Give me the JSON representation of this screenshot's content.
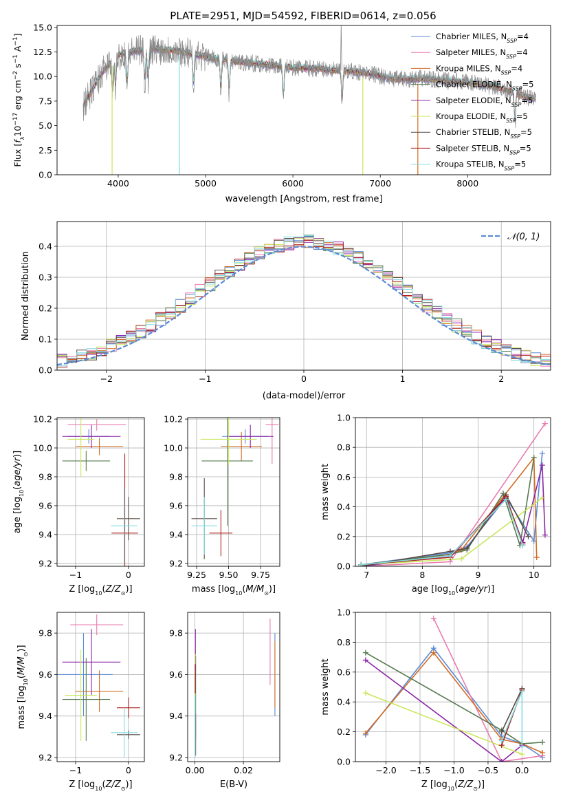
{
  "figure": {
    "title": "PLATE=2951, MJD=54592, FIBERID=0614, z=0.056"
  },
  "colors": {
    "Chabrier MILES": "#5b8ad6",
    "Salpeter MILES": "#e87cae",
    "Kroupa MILES": "#d26c22",
    "Chabrier ELODIE": "#557a4e",
    "Salpeter ELODIE": "#8b25a6",
    "Kroupa ELODIE": "#c9e75a",
    "Chabrier STELIB": "#5a4a46",
    "Salpeter STELIB": "#ad1f1f",
    "Kroupa STELIB": "#80dce0",
    "data": "#8a8a8a",
    "normal": "#5b8ad6"
  },
  "chart_data": [
    {
      "id": "spectrum",
      "type": "line",
      "xlabel": "wavelength [Angstrom, rest frame]",
      "ylabel": "Flux [fλ10⁻¹⁷ erg cm⁻² s⁻¹ A⁻¹]",
      "xlim": [
        3300,
        8950
      ],
      "ylim": [
        0,
        15.2
      ],
      "xticks": [
        4000,
        5000,
        6000,
        7000,
        8000
      ],
      "yticks": [
        0.0,
        2.5,
        5.0,
        7.5,
        10.0,
        12.5,
        15.0
      ],
      "grid": false,
      "legend_position": "upper right",
      "legend": [
        {
          "name": "Chabrier MILES",
          "sub": "SSP",
          "n": "=4"
        },
        {
          "name": "Salpeter MILES",
          "sub": "SSP",
          "n": "=4"
        },
        {
          "name": "Kroupa MILES",
          "sub": "SSP",
          "n": "=4"
        },
        {
          "name": "Chabrier ELODIE",
          "sub": "SSP",
          "n": "=5"
        },
        {
          "name": "Salpeter ELODIE",
          "sub": "SSP",
          "n": "=5"
        },
        {
          "name": "Kroupa ELODIE",
          "sub": "SSP",
          "n": "=5"
        },
        {
          "name": "Chabrier STELIB",
          "sub": "SSP",
          "n": "=5"
        },
        {
          "name": "Salpeter STELIB",
          "sub": "SSP",
          "n": "=5"
        },
        {
          "name": "Kroupa STELIB",
          "sub": "SSP",
          "n": "=5"
        }
      ],
      "continuum": [
        [
          3600,
          7.0
        ],
        [
          3700,
          8.6
        ],
        [
          3800,
          10.2
        ],
        [
          3900,
          11.3
        ],
        [
          4000,
          12.2
        ],
        [
          4200,
          12.6
        ],
        [
          4400,
          12.8
        ],
        [
          4600,
          12.7
        ],
        [
          4800,
          12.4
        ],
        [
          5000,
          12.0
        ],
        [
          5300,
          11.6
        ],
        [
          5600,
          11.3
        ],
        [
          6000,
          10.9
        ],
        [
          6300,
          10.8
        ],
        [
          6500,
          10.6
        ],
        [
          6700,
          10.5
        ],
        [
          6900,
          10.3
        ],
        [
          7100,
          9.8
        ],
        [
          7300,
          9.7
        ],
        [
          7500,
          9.8
        ],
        [
          7700,
          9.6
        ],
        [
          8000,
          9.4
        ],
        [
          8300,
          9.0
        ],
        [
          8500,
          8.5
        ],
        [
          8700,
          7.8
        ]
      ],
      "drop_lines": [
        {
          "x": 3930,
          "series": "Kroupa ELODIE"
        },
        {
          "x": 4700,
          "series": "Kroupa STELIB"
        },
        {
          "x": 6800,
          "series": "Kroupa ELODIE"
        },
        {
          "x": 7430,
          "series": "Kroupa MILES"
        }
      ]
    },
    {
      "id": "residuals",
      "type": "histogram",
      "xlabel": "(data-model)/error",
      "ylabel": "Normed distribution",
      "xlim": [
        -2.5,
        2.5
      ],
      "ylim": [
        0,
        0.48
      ],
      "xticks": [
        -2,
        -1,
        0,
        1,
        2
      ],
      "yticks": [
        0.0,
        0.1,
        0.2,
        0.3,
        0.4
      ],
      "grid": true,
      "legend_position": "upper right",
      "legend_label": "𝒩(0, 1)",
      "bin_width": 0.1
    },
    {
      "id": "age-vs-Z",
      "type": "errorbar",
      "xlabel": "Z [log₁₀(Z/Z⊙)]",
      "ylabel": "age  [log₁₀(age/yr)]",
      "xlim": [
        -1.35,
        0.3
      ],
      "ylim": [
        9.18,
        10.21
      ],
      "xticks": [
        -1,
        0
      ],
      "yticks": [
        9.2,
        9.4,
        9.6,
        9.8,
        10.0,
        10.2
      ],
      "grid": true,
      "points": [
        {
          "series": "Chabrier MILES",
          "x": -0.75,
          "xerr": 0.4,
          "y": 10.08,
          "yerr": 0.05
        },
        {
          "series": "Salpeter MILES",
          "x": -0.6,
          "xerr": 0.55,
          "y": 10.16,
          "yerr": 0.04
        },
        {
          "series": "Kroupa MILES",
          "x": -0.55,
          "xerr": 0.45,
          "y": 10.01,
          "yerr": 0.06
        },
        {
          "series": "Chabrier ELODIE",
          "x": -0.8,
          "xerr": 0.45,
          "y": 9.91,
          "yerr": 0.07
        },
        {
          "series": "Salpeter ELODIE",
          "x": -0.7,
          "xerr": 0.55,
          "y": 10.08,
          "yerr": 0.08
        },
        {
          "series": "Kroupa ELODIE",
          "x": -0.9,
          "xerr": 0.25,
          "y": 10.06,
          "yerr": 0.26
        },
        {
          "series": "Chabrier STELIB",
          "x": 0.0,
          "xerr": 0.22,
          "y": 9.51,
          "yerr": 0.15
        },
        {
          "series": "Salpeter STELIB",
          "x": -0.07,
          "xerr": 0.25,
          "y": 9.41,
          "yerr": 0.55
        },
        {
          "series": "Kroupa STELIB",
          "x": -0.08,
          "xerr": 0.25,
          "y": 9.46,
          "yerr": 0.26
        }
      ]
    },
    {
      "id": "age-vs-mass",
      "type": "errorbar",
      "xlabel": "mass [log₁₀(M/M⊙)]",
      "ylabel": "",
      "xlim": [
        9.18,
        9.9
      ],
      "ylim": [
        9.18,
        10.21
      ],
      "xticks": [
        9.25,
        9.5,
        9.75
      ],
      "yticks": [
        9.2,
        9.4,
        9.6,
        9.8,
        10.0,
        10.2
      ],
      "grid": true,
      "points": [
        {
          "series": "Chabrier MILES",
          "x": 9.63,
          "xerr": 0.18,
          "y": 10.08,
          "yerr": 0.05
        },
        {
          "series": "Salpeter MILES",
          "x": 9.84,
          "xerr": 0.05,
          "y": 10.16,
          "yerr": 0.27
        },
        {
          "series": "Kroupa MILES",
          "x": 9.6,
          "xerr": 0.16,
          "y": 10.01,
          "yerr": 0.1
        },
        {
          "series": "Chabrier ELODIE",
          "x": 9.49,
          "xerr": 0.2,
          "y": 9.91,
          "yerr": 0.45
        },
        {
          "series": "Salpeter ELODIE",
          "x": 9.67,
          "xerr": 0.18,
          "y": 10.08,
          "yerr": 0.08
        },
        {
          "series": "Kroupa ELODIE",
          "x": 9.5,
          "xerr": 0.22,
          "y": 10.06,
          "yerr": 0.18
        },
        {
          "series": "Chabrier STELIB",
          "x": 9.31,
          "xerr": 0.1,
          "y": 9.51,
          "yerr": 0.28
        },
        {
          "series": "Salpeter STELIB",
          "x": 9.44,
          "xerr": 0.09,
          "y": 9.41,
          "yerr": 0.16
        },
        {
          "series": "Kroupa STELIB",
          "x": 9.31,
          "xerr": 0.1,
          "y": 9.46,
          "yerr": 0.2
        }
      ]
    },
    {
      "id": "mass-weight-vs-age",
      "type": "line",
      "xlabel": "age  [log₁₀(age/yr)]",
      "ylabel": "mass weight",
      "xlim": [
        6.8,
        10.3
      ],
      "ylim": [
        0,
        1.0
      ],
      "xticks": [
        7,
        8,
        9,
        10
      ],
      "yticks": [
        0.0,
        0.2,
        0.4,
        0.6,
        0.8,
        1.0
      ],
      "grid": true,
      "series": [
        {
          "name": "Chabrier MILES",
          "points": [
            [
              6.9,
              0.01
            ],
            [
              8.5,
              0.09
            ],
            [
              8.8,
              0.13
            ],
            [
              9.5,
              0.46
            ],
            [
              10.0,
              0.17
            ],
            [
              10.15,
              0.76
            ]
          ]
        },
        {
          "name": "Salpeter MILES",
          "points": [
            [
              6.9,
              0.0
            ],
            [
              8.5,
              0.03
            ],
            [
              10.2,
              0.96
            ]
          ]
        },
        {
          "name": "Kroupa MILES",
          "points": [
            [
              6.9,
              0.01
            ],
            [
              8.5,
              0.08
            ],
            [
              8.7,
              0.11
            ],
            [
              10.0,
              0.73
            ],
            [
              10.05,
              0.06
            ]
          ]
        },
        {
          "name": "Chabrier ELODIE",
          "points": [
            [
              6.9,
              0.01
            ],
            [
              8.5,
              0.08
            ],
            [
              8.8,
              0.11
            ],
            [
              9.45,
              0.49
            ],
            [
              9.75,
              0.14
            ],
            [
              10.0,
              0.73
            ]
          ]
        },
        {
          "name": "Salpeter ELODIE",
          "points": [
            [
              6.9,
              0.0
            ],
            [
              8.5,
              0.07
            ],
            [
              9.5,
              0.46
            ],
            [
              9.8,
              0.16
            ],
            [
              10.15,
              0.68
            ],
            [
              10.2,
              0.21
            ]
          ]
        },
        {
          "name": "Kroupa ELODIE",
          "points": [
            [
              6.9,
              0.01
            ],
            [
              8.7,
              0.05
            ],
            [
              10.15,
              0.46
            ]
          ]
        },
        {
          "name": "Chabrier STELIB",
          "points": [
            [
              6.9,
              0.0
            ],
            [
              8.5,
              0.1
            ],
            [
              8.8,
              0.12
            ],
            [
              9.5,
              0.48
            ],
            [
              9.9,
              0.2
            ]
          ]
        },
        {
          "name": "Salpeter STELIB",
          "points": [
            [
              6.9,
              0.01
            ],
            [
              8.5,
              0.06
            ],
            [
              9.5,
              0.47
            ],
            [
              9.8,
              0.15
            ]
          ]
        },
        {
          "name": "Kroupa STELIB",
          "points": [
            [
              6.9,
              0.01
            ],
            [
              8.5,
              0.07
            ],
            [
              9.5,
              0.45
            ],
            [
              9.8,
              0.14
            ]
          ]
        }
      ]
    },
    {
      "id": "mass-vs-Z",
      "type": "errorbar",
      "xlabel": "Z [log₁₀(Z/Z⊙)]",
      "ylabel": "mass [log₁₀(M/M⊙)]",
      "xlim": [
        -1.35,
        0.3
      ],
      "ylim": [
        9.18,
        9.9
      ],
      "xticks": [
        -1,
        0
      ],
      "yticks": [
        9.2,
        9.4,
        9.6,
        9.8
      ],
      "grid": true,
      "points": [
        {
          "series": "Chabrier MILES",
          "x": -0.85,
          "xerr": 0.55,
          "y": 9.6,
          "yerr": 0.2
        },
        {
          "series": "Salpeter MILES",
          "x": -0.6,
          "xerr": 0.5,
          "y": 9.84,
          "yerr": 0.05
        },
        {
          "series": "Kroupa MILES",
          "x": -0.55,
          "xerr": 0.45,
          "y": 9.52,
          "yerr": 0.1
        },
        {
          "series": "Chabrier ELODIE",
          "x": -0.8,
          "xerr": 0.45,
          "y": 9.48,
          "yerr": 0.2
        },
        {
          "series": "Salpeter ELODIE",
          "x": -0.7,
          "xerr": 0.55,
          "y": 9.66,
          "yerr": 0.16
        },
        {
          "series": "Kroupa ELODIE",
          "x": -0.9,
          "xerr": 0.3,
          "y": 9.5,
          "yerr": 0.22
        },
        {
          "series": "Chabrier STELIB",
          "x": 0.0,
          "xerr": 0.22,
          "y": 9.31,
          "yerr": 0.02
        },
        {
          "series": "Salpeter STELIB",
          "x": 0.0,
          "xerr": 0.22,
          "y": 9.44,
          "yerr": 0.05
        },
        {
          "series": "Kroupa STELIB",
          "x": -0.08,
          "xerr": 0.25,
          "y": 9.32,
          "yerr": 0.12
        }
      ]
    },
    {
      "id": "mass-vs-EBV",
      "type": "errorbar",
      "xlabel": "E(B-V)",
      "ylabel": "",
      "xlim": [
        -0.003,
        0.035
      ],
      "ylim": [
        9.18,
        9.9
      ],
      "xticks": [
        0.0,
        0.02
      ],
      "yticks": [
        9.2,
        9.4,
        9.6,
        9.8
      ],
      "grid": true,
      "points": [
        {
          "series": "Chabrier MILES",
          "x": 0.033,
          "xerr": 0.0,
          "y": 9.6,
          "yerr": 0.2
        },
        {
          "series": "Salpeter MILES",
          "x": 0.031,
          "xerr": 0.0,
          "y": 9.71,
          "yerr": 0.16
        },
        {
          "series": "Kroupa MILES",
          "x": 0.033,
          "xerr": 0.0,
          "y": 9.6,
          "yerr": 0.16
        },
        {
          "series": "Chabrier ELODIE",
          "x": 0.0003,
          "xerr": 0.0,
          "y": 9.49,
          "yerr": 0.2
        },
        {
          "series": "Salpeter ELODIE",
          "x": 0.0002,
          "xerr": 0.0,
          "y": 9.72,
          "yerr": 0.1
        },
        {
          "series": "Kroupa ELODIE",
          "x": 0.0001,
          "xerr": 0.0,
          "y": 9.6,
          "yerr": 0.1
        },
        {
          "series": "Chabrier STELIB",
          "x": 0.0003,
          "xerr": 0.0,
          "y": 9.31,
          "yerr": 0.1
        },
        {
          "series": "Salpeter STELIB",
          "x": 0.0001,
          "xerr": 0.0,
          "y": 9.58,
          "yerr": 0.07
        },
        {
          "series": "Kroupa STELIB",
          "x": 0.0001,
          "xerr": 0.0,
          "y": 9.35,
          "yerr": 0.15
        }
      ]
    },
    {
      "id": "mass-weight-vs-Z",
      "type": "line",
      "xlabel": "Z [log₁₀(Z/Z⊙)]",
      "ylabel": "mass weight",
      "xlim": [
        -2.45,
        0.42
      ],
      "ylim": [
        0,
        1.0
      ],
      "xticks": [
        -2.0,
        -1.5,
        -1.0,
        -0.5,
        0.0
      ],
      "yticks": [
        0.0,
        0.2,
        0.4,
        0.6,
        0.8,
        1.0
      ],
      "grid": true,
      "series": [
        {
          "name": "Chabrier MILES",
          "points": [
            [
              -2.3,
              0.18
            ],
            [
              -1.3,
              0.76
            ],
            [
              -0.3,
              0.17
            ],
            [
              0.0,
              0.12
            ],
            [
              0.3,
              0.03
            ]
          ]
        },
        {
          "name": "Salpeter MILES",
          "points": [
            [
              -1.3,
              0.96
            ],
            [
              -0.3,
              0.0
            ],
            [
              0.3,
              0.04
            ]
          ]
        },
        {
          "name": "Kroupa MILES",
          "points": [
            [
              -2.3,
              0.19
            ],
            [
              -1.3,
              0.73
            ],
            [
              -0.3,
              0.15
            ],
            [
              0.0,
              0.12
            ],
            [
              0.3,
              0.06
            ]
          ]
        },
        {
          "name": "Chabrier ELODIE",
          "points": [
            [
              -2.3,
              0.73
            ],
            [
              -0.3,
              0.21
            ],
            [
              0.0,
              0.12
            ],
            [
              0.3,
              0.13
            ]
          ]
        },
        {
          "name": "Salpeter ELODIE",
          "points": [
            [
              -2.3,
              0.68
            ],
            [
              -0.3,
              0.0
            ],
            [
              0.0,
              0.11
            ]
          ]
        },
        {
          "name": "Kroupa ELODIE",
          "points": [
            [
              -2.3,
              0.46
            ],
            [
              0.0,
              0.05
            ]
          ]
        },
        {
          "name": "Chabrier STELIB",
          "points": [
            [
              -0.3,
              0.2
            ],
            [
              0.0,
              0.49
            ]
          ]
        },
        {
          "name": "Salpeter STELIB",
          "points": [
            [
              -0.3,
              0.11
            ],
            [
              0.0,
              0.48
            ]
          ]
        },
        {
          "name": "Kroupa STELIB",
          "points": [
            [
              -0.3,
              0.14
            ],
            [
              0.0,
              0.47
            ],
            [
              0.0,
              0.1
            ]
          ]
        }
      ]
    }
  ]
}
